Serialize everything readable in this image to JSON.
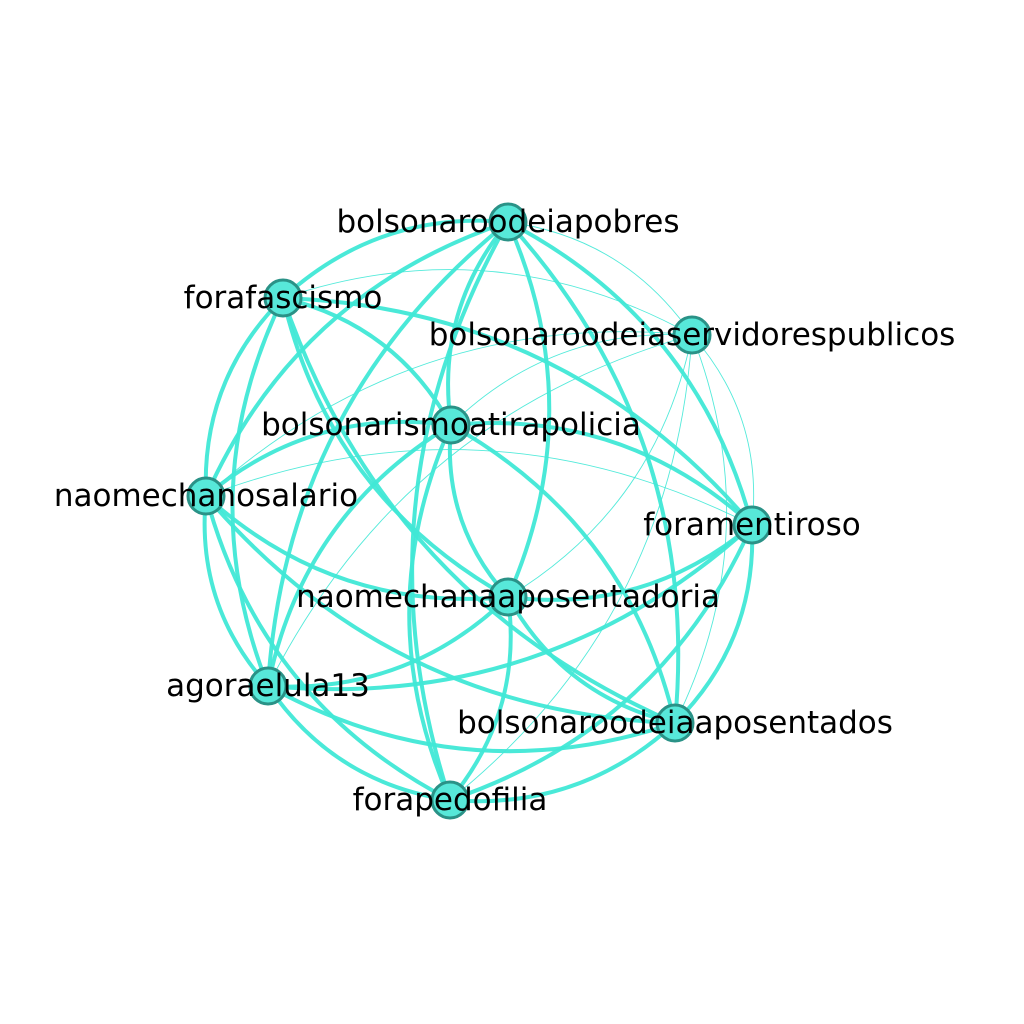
{
  "diagram": {
    "type": "network-graph",
    "colors": {
      "background": "#ffffff",
      "edge": "#40e8d6",
      "node_fill": "#57e8d9",
      "node_stroke": "#2a9287",
      "label": "#000000"
    },
    "nodes": [
      {
        "id": "bolsonaroodeiapobres",
        "label": "bolsonaroodeiapobres"
      },
      {
        "id": "forafascismo",
        "label": "forafascismo"
      },
      {
        "id": "bolsonaroodeiaservidorespublicos",
        "label": "bolsonaroodeiaservidorespublicos"
      },
      {
        "id": "bolsonarismoatirapolicia",
        "label": "bolsonarismoatirapolicia"
      },
      {
        "id": "naomechanosalario",
        "label": "naomechanosalario"
      },
      {
        "id": "foramentiroso",
        "label": "foramentiroso"
      },
      {
        "id": "naomechanaaposentadoria",
        "label": "naomechanaaposentadoria"
      },
      {
        "id": "agoraelula13",
        "label": "agoraelula13"
      },
      {
        "id": "bolsonaroodeiaaposentados",
        "label": "bolsonaroodeiaaposentados"
      },
      {
        "id": "forapedofilia",
        "label": "forapedofilia"
      }
    ],
    "edges": [
      {
        "source": "bolsonaroodeiapobres",
        "target": "forafascismo",
        "weight": 3
      },
      {
        "source": "bolsonaroodeiapobres",
        "target": "bolsonarismoatirapolicia",
        "weight": 3
      },
      {
        "source": "bolsonaroodeiapobres",
        "target": "naomechanosalario",
        "weight": 3
      },
      {
        "source": "bolsonaroodeiapobres",
        "target": "foramentiroso",
        "weight": 3
      },
      {
        "source": "bolsonaroodeiapobres",
        "target": "naomechanaaposentadoria",
        "weight": 3
      },
      {
        "source": "bolsonaroodeiapobres",
        "target": "agoraelula13",
        "weight": 3
      },
      {
        "source": "bolsonaroodeiapobres",
        "target": "bolsonaroodeiaaposentados",
        "weight": 3
      },
      {
        "source": "bolsonaroodeiapobres",
        "target": "forapedofilia",
        "weight": 3
      },
      {
        "source": "bolsonaroodeiapobres",
        "target": "bolsonaroodeiaservidorespublicos",
        "weight": 1
      },
      {
        "source": "forafascismo",
        "target": "bolsonarismoatirapolicia",
        "weight": 3
      },
      {
        "source": "forafascismo",
        "target": "naomechanosalario",
        "weight": 3
      },
      {
        "source": "forafascismo",
        "target": "foramentiroso",
        "weight": 3
      },
      {
        "source": "forafascismo",
        "target": "naomechanaaposentadoria",
        "weight": 3
      },
      {
        "source": "forafascismo",
        "target": "bolsonaroodeiaaposentados",
        "weight": 3
      },
      {
        "source": "forafascismo",
        "target": "agoraelula13",
        "weight": 3
      },
      {
        "source": "forafascismo",
        "target": "bolsonaroodeiaservidorespublicos",
        "weight": 1
      },
      {
        "source": "bolsonarismoatirapolicia",
        "target": "naomechanosalario",
        "weight": 3
      },
      {
        "source": "bolsonarismoatirapolicia",
        "target": "foramentiroso",
        "weight": 3
      },
      {
        "source": "bolsonarismoatirapolicia",
        "target": "naomechanaaposentadoria",
        "weight": 3
      },
      {
        "source": "bolsonarismoatirapolicia",
        "target": "agoraelula13",
        "weight": 3
      },
      {
        "source": "bolsonarismoatirapolicia",
        "target": "bolsonaroodeiaaposentados",
        "weight": 3
      },
      {
        "source": "bolsonarismoatirapolicia",
        "target": "forapedofilia",
        "weight": 3
      },
      {
        "source": "naomechanosalario",
        "target": "naomechanaaposentadoria",
        "weight": 3
      },
      {
        "source": "naomechanosalario",
        "target": "agoraelula13",
        "weight": 3
      },
      {
        "source": "naomechanosalario",
        "target": "bolsonaroodeiaaposentados",
        "weight": 3
      },
      {
        "source": "naomechanosalario",
        "target": "forapedofilia",
        "weight": 3
      },
      {
        "source": "naomechanosalario",
        "target": "foramentiroso",
        "weight": 1
      },
      {
        "source": "naomechanosalario",
        "target": "bolsonaroodeiaservidorespublicos",
        "weight": 1
      },
      {
        "source": "foramentiroso",
        "target": "naomechanaaposentadoria",
        "weight": 3
      },
      {
        "source": "foramentiroso",
        "target": "agoraelula13",
        "weight": 3
      },
      {
        "source": "foramentiroso",
        "target": "bolsonaroodeiaaposentados",
        "weight": 3
      },
      {
        "source": "foramentiroso",
        "target": "forapedofilia",
        "weight": 3
      },
      {
        "source": "naomechanaaposentadoria",
        "target": "agoraelula13",
        "weight": 3
      },
      {
        "source": "naomechanaaposentadoria",
        "target": "bolsonaroodeiaaposentados",
        "weight": 3
      },
      {
        "source": "naomechanaaposentadoria",
        "target": "forapedofilia",
        "weight": 3
      },
      {
        "source": "agoraelula13",
        "target": "bolsonaroodeiaaposentados",
        "weight": 3
      },
      {
        "source": "agoraelula13",
        "target": "forapedofilia",
        "weight": 3
      },
      {
        "source": "bolsonaroodeiaaposentados",
        "target": "forapedofilia",
        "weight": 3
      },
      {
        "source": "bolsonaroodeiaservidorespublicos",
        "target": "foramentiroso",
        "weight": 1
      },
      {
        "source": "bolsonaroodeiaservidorespublicos",
        "target": "bolsonarismoatirapolicia",
        "weight": 1
      },
      {
        "source": "bolsonaroodeiaservidorespublicos",
        "target": "naomechanaaposentadoria",
        "weight": 1
      },
      {
        "source": "bolsonaroodeiaservidorespublicos",
        "target": "agoraelula13",
        "weight": 1
      },
      {
        "source": "bolsonaroodeiaservidorespublicos",
        "target": "bolsonaroodeiaaposentados",
        "weight": 1
      },
      {
        "source": "bolsonaroodeiaservidorespublicos",
        "target": "forapedofilia",
        "weight": 1
      }
    ]
  }
}
